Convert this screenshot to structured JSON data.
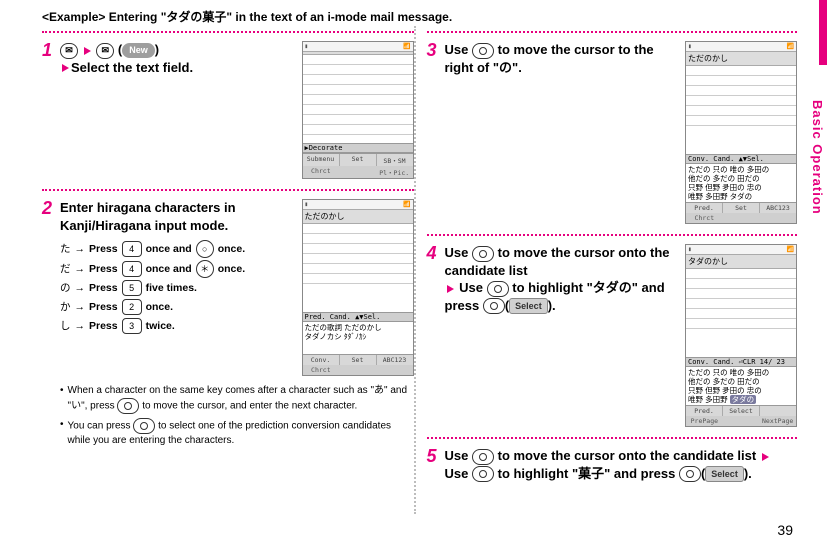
{
  "side_tab": {
    "label": "Basic Operation"
  },
  "page_number": "39",
  "example_prefix": "<Example>",
  "example_text": "Entering \"タダの菓子\" in the text of an i-mode mail message.",
  "steps": {
    "s1": {
      "num": "1",
      "new_label": "New",
      "line2": "Select the text field.",
      "phone": {
        "title": " ",
        "decorate": "▶Decorate",
        "sk": [
          "Submenu",
          "Set",
          "SB・SM"
        ],
        "sk2": [
          "Chrct",
          "",
          "Pl・Pic."
        ]
      }
    },
    "s2": {
      "num": "2",
      "title_a": "Enter hiragana characters in",
      "title_b": "Kanji/Hiragana input mode.",
      "rows": [
        {
          "jp": "た",
          "arrow": "→",
          "t1": "Press",
          "k1": "4",
          "mid": "once and",
          "k2": "○",
          "tail": "once."
        },
        {
          "jp": "だ",
          "arrow": "→",
          "t1": "Press",
          "k1": "4",
          "mid": "once and",
          "k2": "＊",
          "tail": "once."
        },
        {
          "jp": "の",
          "arrow": "→",
          "t1": "Press",
          "k1": "5",
          "mid": "five times.",
          "k2": "",
          "tail": ""
        },
        {
          "jp": "か",
          "arrow": "→",
          "t1": "Press",
          "k1": "2",
          "mid": "once.",
          "k2": "",
          "tail": ""
        },
        {
          "jp": "し",
          "arrow": "→",
          "t1": "Press",
          "k1": "3",
          "mid": "twice.",
          "k2": "",
          "tail": ""
        }
      ],
      "bullet1a": "When a character on the same key",
      "bullet1b": "comes after a character such as \"あ\" and \"い\", press",
      "bullet1c": "to move the cursor, and enter the next character.",
      "bullet2a": "You can press",
      "bullet2b": "to select one of the prediction conversion candidates while you are entering the characters.",
      "phone": {
        "title": "ただのかし",
        "cand_label": "Pred. Cand.  ▲▼Sel.",
        "cand": "ただの歌詞 ただのかし\nタダノカシ  ﾀﾀﾞﾉｶｼ",
        "sk": [
          "Conv.",
          "Set",
          "ABC123"
        ],
        "sk2": [
          "Chrct",
          "",
          ""
        ]
      }
    },
    "s3": {
      "num": "3",
      "t1": "Use",
      "t2": "to move the cursor to the right of \"の\".",
      "phone": {
        "title": "ただのかし",
        "cand_label": "Conv. Cand.  ▲▼Sel.",
        "cand": "ただの 只の 唯の 多田の\n他だの 多だの 田だの\n只野 但野 夛田の 忠の\n唯野 多田野 タダの",
        "sk": [
          "Pred.",
          "Set",
          "ABC123"
        ],
        "sk2": [
          "Chrct",
          "",
          ""
        ]
      }
    },
    "s4": {
      "num": "4",
      "t1": "Use",
      "t2": "to move the cursor onto the candidate list",
      "t3": "Use",
      "t4": "to highlight \"タダの\" and press",
      "select": "Select",
      "t5": ".",
      "phone": {
        "title": "タダのかし",
        "cand_label": "Conv. Cand.  ⏎CLR        14/ 23",
        "cand_pre": "ただの 只の 唯の 多田の\n他だの 多だの 田だの\n只野 但野 夛田の 忠の\n唯野 多田野 ",
        "cand_hl": "タダの",
        "sk": [
          "Pred.",
          "Select",
          ""
        ],
        "sk2": [
          "PrePage",
          "",
          "NextPage"
        ]
      }
    },
    "s5": {
      "num": "5",
      "t1": "Use",
      "t2": "to move the cursor onto the candidate list",
      "t3": "Use",
      "t4": "to highlight \"菓子\" and press",
      "select": "Select",
      "t5": "."
    }
  }
}
